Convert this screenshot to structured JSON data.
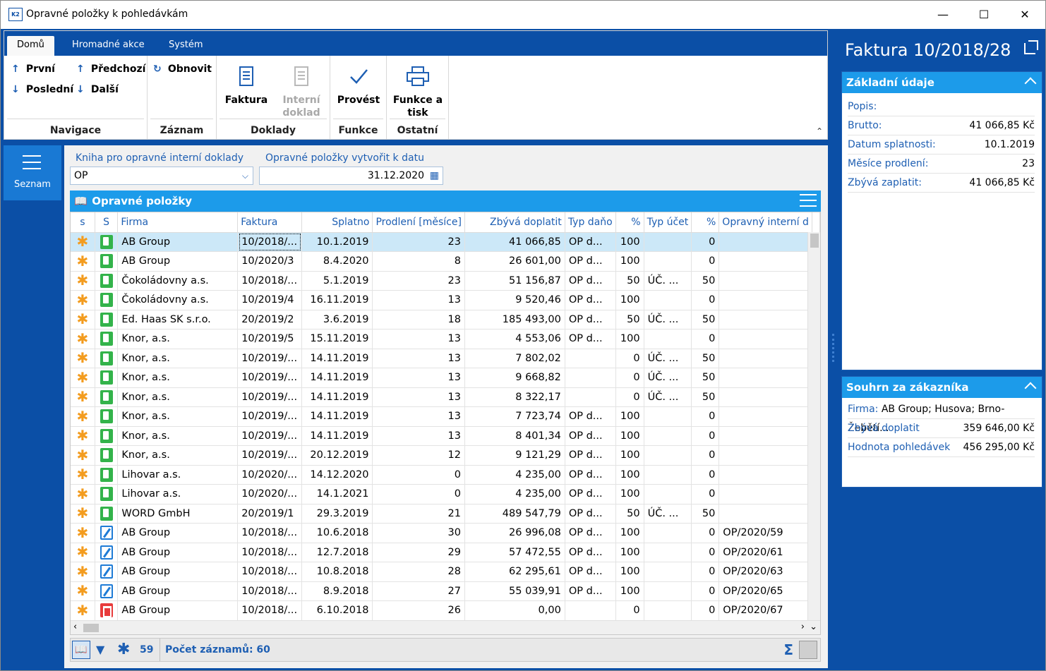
{
  "window": {
    "title": "Opravné položky k pohledávkám",
    "icon_text": "K2"
  },
  "ribbon": {
    "tabs": [
      "Domů",
      "Hromadné akce",
      "Systém"
    ],
    "navigace": {
      "prvni": "První",
      "predchozi": "Předchozí",
      "posledni": "Poslední",
      "dalsi": "Další",
      "label": "Navigace"
    },
    "zaznam": {
      "obnovit": "Obnovit",
      "label": "Záznam"
    },
    "doklady": {
      "faktura": "Faktura",
      "interni_1": "Interní",
      "interni_2": "doklad",
      "label": "Doklady"
    },
    "funkce": {
      "provest": "Provést",
      "label": "Funkce"
    },
    "ostatni": {
      "funkce_tisk_1": "Funkce a",
      "funkce_tisk_2": "tisk",
      "label": "Ostatní"
    }
  },
  "leftnav": {
    "seznam": "Seznam"
  },
  "filters": {
    "kniha_label": "Kniha pro opravné interní doklady",
    "kniha_value": "OP",
    "datum_label": "Opravné položky vytvořit k datu",
    "datum_value": "31.12.2020"
  },
  "grid": {
    "title": "Opravné položky",
    "columns": [
      "s",
      "S",
      "Firma",
      "Faktura",
      "Splatno",
      "Prodlení [měsíce]",
      "Zbývá doplatit",
      "Typ daňo",
      "%",
      "Typ účet",
      "%",
      "Opravný interní d"
    ],
    "rows": [
      {
        "icon": "green",
        "firma": "AB Group",
        "faktura": "10/2018/...",
        "splatno": "10.1.2019",
        "prodleni": "23",
        "zbyva": "41 066,85",
        "typ_dan": "OP d...",
        "pct1": "100",
        "typ_uc": "",
        "pct2": "0",
        "opravny": ""
      },
      {
        "icon": "green",
        "firma": "AB Group",
        "faktura": "10/2020/3",
        "splatno": "8.4.2020",
        "prodleni": "8",
        "zbyva": "26 601,00",
        "typ_dan": "OP d...",
        "pct1": "100",
        "typ_uc": "",
        "pct2": "0",
        "opravny": ""
      },
      {
        "icon": "green",
        "firma": "Čokoládovny a.s.",
        "faktura": "10/2018/...",
        "splatno": "5.1.2019",
        "prodleni": "23",
        "zbyva": "51 156,87",
        "typ_dan": "OP d...",
        "pct1": "50",
        "typ_uc": "ÚČ. ...",
        "pct2": "50",
        "opravny": ""
      },
      {
        "icon": "green",
        "firma": "Čokoládovny a.s.",
        "faktura": "10/2019/4",
        "splatno": "16.11.2019",
        "prodleni": "13",
        "zbyva": "9 520,46",
        "typ_dan": "OP d...",
        "pct1": "100",
        "typ_uc": "",
        "pct2": "0",
        "opravny": ""
      },
      {
        "icon": "green",
        "firma": "Ed. Haas SK s.r.o.",
        "faktura": "20/2019/2",
        "splatno": "3.6.2019",
        "prodleni": "18",
        "zbyva": "185 493,00",
        "typ_dan": "OP d...",
        "pct1": "50",
        "typ_uc": "ÚČ. ...",
        "pct2": "50",
        "opravny": ""
      },
      {
        "icon": "green",
        "firma": "Knor, a.s.",
        "faktura": "10/2019/5",
        "splatno": "15.11.2019",
        "prodleni": "13",
        "zbyva": "4 553,06",
        "typ_dan": "OP d...",
        "pct1": "100",
        "typ_uc": "",
        "pct2": "0",
        "opravny": ""
      },
      {
        "icon": "green",
        "firma": "Knor, a.s.",
        "faktura": "10/2019/...",
        "splatno": "14.11.2019",
        "prodleni": "13",
        "zbyva": "7 802,02",
        "typ_dan": "",
        "pct1": "0",
        "typ_uc": "ÚČ. ...",
        "pct2": "50",
        "opravny": ""
      },
      {
        "icon": "green",
        "firma": "Knor, a.s.",
        "faktura": "10/2019/...",
        "splatno": "14.11.2019",
        "prodleni": "13",
        "zbyva": "9 668,82",
        "typ_dan": "",
        "pct1": "0",
        "typ_uc": "ÚČ. ...",
        "pct2": "50",
        "opravny": ""
      },
      {
        "icon": "green",
        "firma": "Knor, a.s.",
        "faktura": "10/2019/...",
        "splatno": "14.11.2019",
        "prodleni": "13",
        "zbyva": "8 322,17",
        "typ_dan": "",
        "pct1": "0",
        "typ_uc": "ÚČ. ...",
        "pct2": "50",
        "opravny": ""
      },
      {
        "icon": "green",
        "firma": "Knor, a.s.",
        "faktura": "10/2019/...",
        "splatno": "14.11.2019",
        "prodleni": "13",
        "zbyva": "7 723,74",
        "typ_dan": "OP d...",
        "pct1": "100",
        "typ_uc": "",
        "pct2": "0",
        "opravny": ""
      },
      {
        "icon": "green",
        "firma": "Knor, a.s.",
        "faktura": "10/2019/...",
        "splatno": "14.11.2019",
        "prodleni": "13",
        "zbyva": "8 401,34",
        "typ_dan": "OP d...",
        "pct1": "100",
        "typ_uc": "",
        "pct2": "0",
        "opravny": ""
      },
      {
        "icon": "green",
        "firma": "Knor, a.s.",
        "faktura": "10/2019/...",
        "splatno": "20.12.2019",
        "prodleni": "12",
        "zbyva": "9 121,29",
        "typ_dan": "OP d...",
        "pct1": "100",
        "typ_uc": "",
        "pct2": "0",
        "opravny": ""
      },
      {
        "icon": "green",
        "firma": "Lihovar a.s.",
        "faktura": "10/2020/...",
        "splatno": "14.12.2020",
        "prodleni": "0",
        "zbyva": "4 235,00",
        "typ_dan": "OP d...",
        "pct1": "100",
        "typ_uc": "",
        "pct2": "0",
        "opravny": ""
      },
      {
        "icon": "green",
        "firma": "Lihovar a.s.",
        "faktura": "10/2020/...",
        "splatno": "14.1.2021",
        "prodleni": "0",
        "zbyva": "4 235,00",
        "typ_dan": "OP d...",
        "pct1": "100",
        "typ_uc": "",
        "pct2": "0",
        "opravny": ""
      },
      {
        "icon": "green",
        "firma": "WORD GmbH",
        "faktura": "20/2019/1",
        "splatno": "29.3.2019",
        "prodleni": "21",
        "zbyva": "489 547,79",
        "typ_dan": "OP d...",
        "pct1": "50",
        "typ_uc": "ÚČ. ...",
        "pct2": "50",
        "opravny": ""
      },
      {
        "icon": "blue",
        "firma": "AB Group",
        "faktura": "10/2018/...",
        "splatno": "10.6.2018",
        "prodleni": "30",
        "zbyva": "26 996,08",
        "typ_dan": "OP d...",
        "pct1": "100",
        "typ_uc": "",
        "pct2": "0",
        "opravny": "OP/2020/59"
      },
      {
        "icon": "blue",
        "firma": "AB Group",
        "faktura": "10/2018/...",
        "splatno": "12.7.2018",
        "prodleni": "29",
        "zbyva": "57 472,55",
        "typ_dan": "OP d...",
        "pct1": "100",
        "typ_uc": "",
        "pct2": "0",
        "opravny": "OP/2020/61"
      },
      {
        "icon": "blue",
        "firma": "AB Group",
        "faktura": "10/2018/...",
        "splatno": "10.8.2018",
        "prodleni": "28",
        "zbyva": "62 295,61",
        "typ_dan": "OP d...",
        "pct1": "100",
        "typ_uc": "",
        "pct2": "0",
        "opravny": "OP/2020/63"
      },
      {
        "icon": "blue",
        "firma": "AB Group",
        "faktura": "10/2018/...",
        "splatno": "8.9.2018",
        "prodleni": "27",
        "zbyva": "55 039,91",
        "typ_dan": "OP d...",
        "pct1": "100",
        "typ_uc": "",
        "pct2": "0",
        "opravny": "OP/2020/65"
      },
      {
        "icon": "red",
        "firma": "AB Group",
        "faktura": "10/2018/...",
        "splatno": "6.10.2018",
        "prodleni": "26",
        "zbyva": "0,00",
        "typ_dan": "",
        "pct1": "0",
        "typ_uc": "",
        "pct2": "0",
        "opravny": "OP/2020/67"
      }
    ]
  },
  "statusbar": {
    "count": "59",
    "records": "Počet záznamů: 60",
    "sum_symbol": "Σ"
  },
  "rightpanel": {
    "title": "Faktura 10/2018/28",
    "zakladni": {
      "title": "Základní údaje",
      "rows": [
        {
          "k": "Popis:",
          "v": ""
        },
        {
          "k": "Brutto:",
          "v": "41 066,85 Kč"
        },
        {
          "k": "Datum splatnosti:",
          "v": "10.1.2019"
        },
        {
          "k": "Měsíce prodlení:",
          "v": "23"
        },
        {
          "k": "Zbývá zaplatit:",
          "v": "41 066,85 Kč"
        }
      ]
    },
    "souhrn": {
      "title": "Souhrn za zákazníka",
      "firma_label": "Firma:",
      "firma_value": "AB Group; Husova; Brno-Žebětí...",
      "rows": [
        {
          "k": "Zbývá doplatit",
          "v": "359 646,00 Kč"
        },
        {
          "k": "Hodnota pohledávek",
          "v": "456 295,00 Kč"
        }
      ]
    }
  }
}
